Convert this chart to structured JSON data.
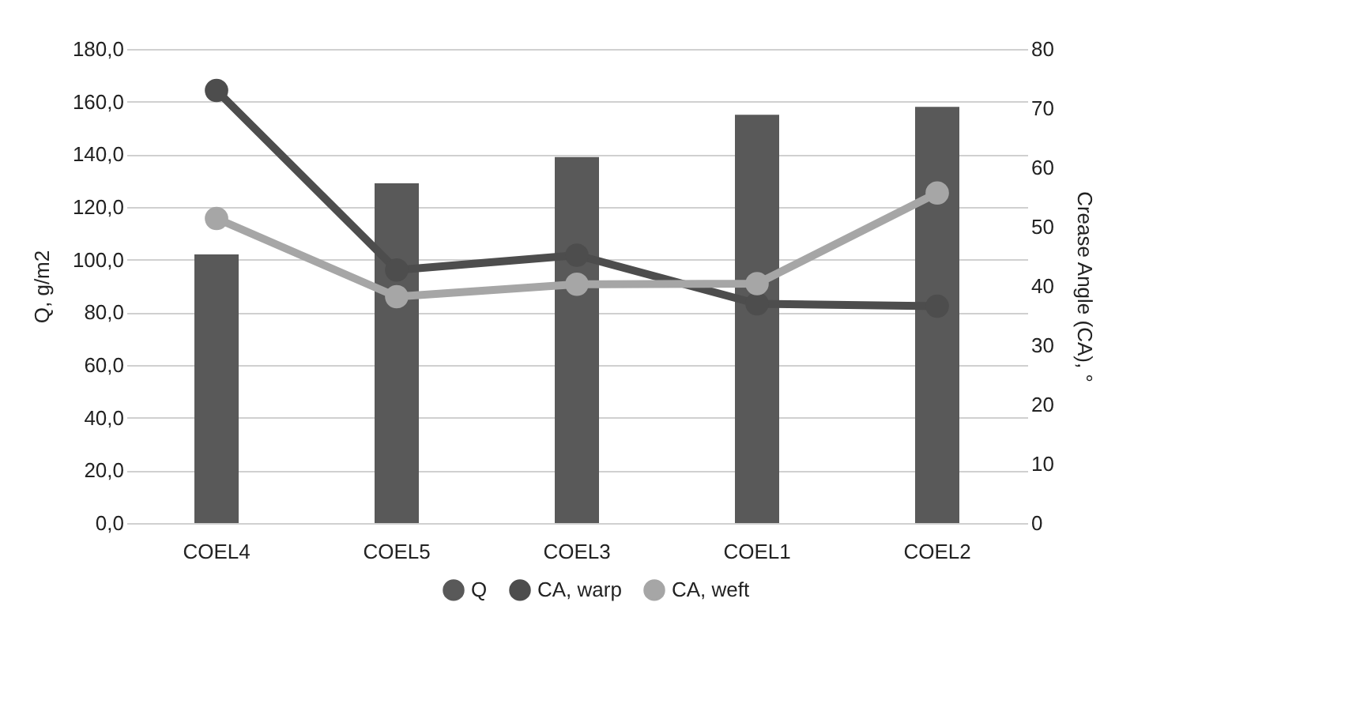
{
  "chart_data": {
    "type": "bar",
    "ylabel": "Q, g/m2",
    "y2label": "Crease Angle (CA), °",
    "categories": [
      "COEL4",
      "COEL5",
      "COEL3",
      "COEL1",
      "COEL2"
    ],
    "series": [
      {
        "name": "Q",
        "color": "#595959",
        "values": [
          102,
          129,
          139,
          155,
          158
        ]
      },
      {
        "name": "CA, warp",
        "type": "line",
        "axis": "y2",
        "color": "#4d4d4d",
        "values": [
          73,
          42.7,
          45.2,
          37,
          36.6
        ]
      },
      {
        "name": "CA, weft",
        "type": "line",
        "axis": "y2",
        "color": "#a6a6a6",
        "values": [
          51.4,
          38.2,
          40.3,
          40.4,
          55.7
        ]
      }
    ],
    "ylim": [
      0,
      180
    ],
    "yticks": [
      {
        "value": 0,
        "label": "0,0"
      },
      {
        "value": 20,
        "label": "20,0"
      },
      {
        "value": 40,
        "label": "40,0"
      },
      {
        "value": 60,
        "label": "60,0"
      },
      {
        "value": 80,
        "label": "80,0"
      },
      {
        "value": 100,
        "label": "100,0"
      },
      {
        "value": 120,
        "label": "120,0"
      },
      {
        "value": 140,
        "label": "140,0"
      },
      {
        "value": 160,
        "label": "160,0"
      },
      {
        "value": 180,
        "label": "180,0"
      }
    ],
    "y2lim": [
      0,
      80
    ],
    "y2ticks": [
      0,
      10,
      20,
      30,
      40,
      50,
      60,
      70,
      80
    ],
    "grid": "y",
    "legend": "bottom",
    "marker": "circle",
    "line_style": "solid"
  }
}
